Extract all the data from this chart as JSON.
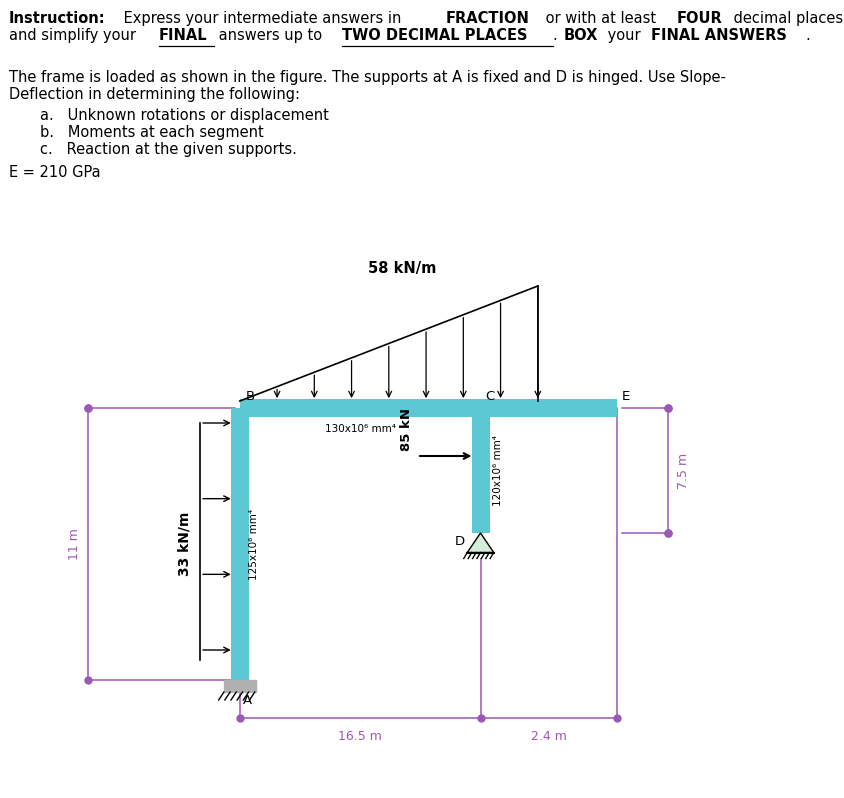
{
  "bg_color": "#ffffff",
  "frame_color": "#5bc8d4",
  "dim_color": "#9b59b6",
  "E_label": "E = 210 GPa",
  "load_top": "58 kN/m",
  "load_left": "33 kN/m",
  "load_mid": "85 kN",
  "dim_left": "11 m",
  "dim_bottom1": "16.5 m",
  "dim_bottom2": "2.4 m",
  "dim_right": "7.5 m",
  "I_AB": "125x10⁶ mm⁴",
  "I_BC": "130x10⁶ mm⁴",
  "I_CD": "120x10⁶ mm⁴",
  "node_A": "A",
  "node_B": "B",
  "node_C": "C",
  "node_D": "D",
  "node_E": "E"
}
